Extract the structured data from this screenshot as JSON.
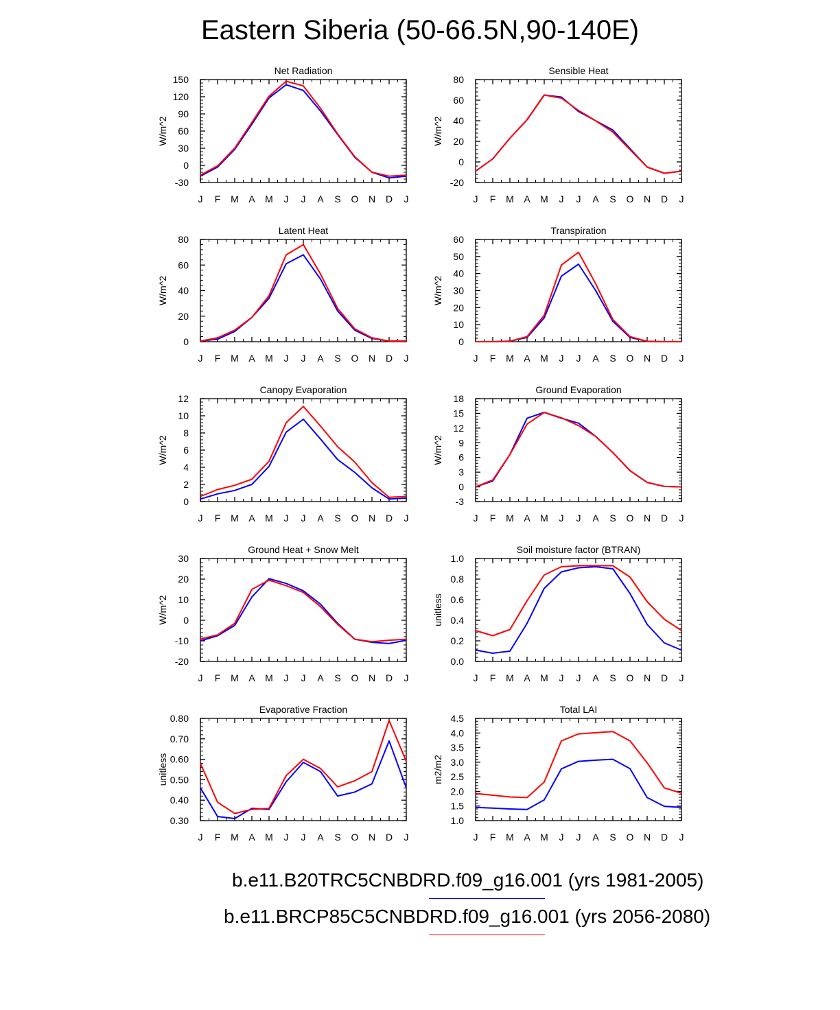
{
  "title": "Eastern Siberia (50-66.5N,90-140E)",
  "months": [
    "J",
    "F",
    "M",
    "A",
    "M",
    "J",
    "J",
    "A",
    "S",
    "O",
    "N",
    "D",
    "J"
  ],
  "colors": {
    "hist": "#0000ff",
    "future": "#ff0000"
  },
  "legend": [
    {
      "label": "b.e11.B20TRC5CNBDRD.f09_g16.001 (yrs 1981-2005)",
      "color": "#0000ff"
    },
    {
      "label": "b.e11.BRCP85C5CNBDRD.f09_g16.001 (yrs 2056-2080)",
      "color": "#ff0000"
    }
  ],
  "chart_data": [
    {
      "type": "line",
      "title": "Net Radiation",
      "ylabel": "W/m^2",
      "ylim": [
        -30,
        150
      ],
      "yticks": [
        -30,
        0,
        30,
        60,
        90,
        120,
        150
      ],
      "yticklabels": [
        "-30",
        "0",
        "30",
        "60",
        "90",
        "120",
        "150"
      ],
      "series": [
        {
          "name": "b.e11.B20TRC5CNBDRD.f09_g16.001 (yrs 1981-2005)",
          "values": [
            -19,
            -3,
            28,
            72,
            118,
            141,
            131,
            95,
            54,
            14,
            -12,
            -22,
            -19
          ]
        },
        {
          "name": "b.e11.BRCP85C5CNBDRD.f09_g16.001 (yrs 2056-2080)",
          "values": [
            -17,
            -1,
            30,
            75,
            121,
            147,
            139,
            100,
            55,
            15,
            -12,
            -19,
            -17
          ]
        }
      ]
    },
    {
      "type": "line",
      "title": "Sensible Heat",
      "ylabel": "W/m^2",
      "ylim": [
        -20,
        80
      ],
      "yticks": [
        -20,
        0,
        20,
        40,
        60,
        80
      ],
      "yticklabels": [
        "-20",
        "0",
        "20",
        "40",
        "60",
        "80"
      ],
      "series": [
        {
          "name": "b.e11.B20TRC5CNBDRD.f09_g16.001 (yrs 1981-2005)",
          "values": [
            -9,
            3,
            23,
            41,
            65,
            63,
            49,
            40,
            31,
            13,
            -5,
            -11,
            -9
          ]
        },
        {
          "name": "b.e11.BRCP85C5CNBDRD.f09_g16.001 (yrs 2056-2080)",
          "values": [
            -9,
            3,
            23,
            41,
            65,
            62,
            50,
            40,
            29,
            12,
            -5,
            -11,
            -9
          ]
        }
      ]
    },
    {
      "type": "line",
      "title": "Latent Heat",
      "ylabel": "W/m^2",
      "ylim": [
        0,
        80
      ],
      "yticks": [
        0,
        20,
        40,
        60,
        80
      ],
      "yticklabels": [
        "0",
        "20",
        "40",
        "60",
        "80"
      ],
      "series": [
        {
          "name": "b.e11.B20TRC5CNBDRD.f09_g16.001 (yrs 1981-2005)",
          "values": [
            0.5,
            2,
            8,
            19,
            34,
            61,
            68,
            49,
            24,
            9,
            2.5,
            0.5,
            0.5
          ]
        },
        {
          "name": "b.e11.BRCP85C5CNBDRD.f09_g16.001 (yrs 2056-2080)",
          "values": [
            0.5,
            3,
            9,
            19,
            36,
            68,
            76,
            53,
            26,
            10,
            3,
            0.5,
            0.5
          ]
        }
      ]
    },
    {
      "type": "line",
      "title": "Transpiration",
      "ylabel": "W/m^2",
      "ylim": [
        0,
        60
      ],
      "yticks": [
        0,
        10,
        20,
        30,
        40,
        50,
        60
      ],
      "yticklabels": [
        "0",
        "10",
        "20",
        "30",
        "40",
        "50",
        "60"
      ],
      "series": [
        {
          "name": "b.e11.B20TRC5CNBDRD.f09_g16.001 (yrs 1981-2005)",
          "values": [
            0,
            0,
            0.3,
            2.5,
            14,
            38.5,
            45.5,
            30,
            12,
            2.5,
            0.2,
            0,
            0
          ]
        },
        {
          "name": "b.e11.BRCP85C5CNBDRD.f09_g16.001 (yrs 2056-2080)",
          "values": [
            0,
            0,
            0.3,
            3,
            15.5,
            45,
            52.5,
            34,
            13,
            3,
            0.2,
            0,
            0
          ]
        }
      ]
    },
    {
      "type": "line",
      "title": "Canopy Evaporation",
      "ylabel": "W/m^2",
      "ylim": [
        0,
        12
      ],
      "yticks": [
        0,
        2,
        4,
        6,
        8,
        10,
        12
      ],
      "yticklabels": [
        "0",
        "2",
        "4",
        "6",
        "8",
        "10",
        "12"
      ],
      "series": [
        {
          "name": "b.e11.B20TRC5CNBDRD.f09_g16.001 (yrs 1981-2005)",
          "values": [
            0.3,
            0.9,
            1.3,
            2.0,
            4.1,
            8.1,
            9.6,
            7.3,
            4.9,
            3.4,
            1.6,
            0.3,
            0.4
          ]
        },
        {
          "name": "b.e11.BRCP85C5CNBDRD.f09_g16.001 (yrs 2056-2080)",
          "values": [
            0.6,
            1.4,
            1.9,
            2.6,
            4.7,
            9.2,
            11.1,
            8.8,
            6.4,
            4.6,
            2.2,
            0.5,
            0.6
          ]
        }
      ]
    },
    {
      "type": "line",
      "title": "Ground Evaporation",
      "ylabel": "W/m^2",
      "ylim": [
        -3,
        18
      ],
      "yticks": [
        -3,
        0,
        3,
        6,
        9,
        12,
        15,
        18
      ],
      "yticklabels": [
        "-3",
        "0",
        "3",
        "6",
        "9",
        "12",
        "15",
        "18"
      ],
      "series": [
        {
          "name": "b.e11.B20TRC5CNBDRD.f09_g16.001 (yrs 1981-2005)",
          "values": [
            0,
            1.2,
            6.6,
            14,
            15.2,
            14,
            13,
            10.3,
            7,
            3.3,
            0.9,
            0.1,
            0
          ]
        },
        {
          "name": "b.e11.BRCP85C5CNBDRD.f09_g16.001 (yrs 2056-2080)",
          "values": [
            0,
            1.4,
            6.6,
            12.8,
            15.2,
            14.1,
            12.5,
            10.3,
            7,
            3.3,
            0.9,
            0.1,
            0
          ]
        }
      ]
    },
    {
      "type": "line",
      "title": "Ground Heat + Snow Melt",
      "ylabel": "W/m^2",
      "ylim": [
        -20,
        30
      ],
      "yticks": [
        -20,
        -10,
        0,
        10,
        20,
        30
      ],
      "yticklabels": [
        "-20",
        "-10",
        "0",
        "10",
        "20",
        "30"
      ],
      "series": [
        {
          "name": "b.e11.B20TRC5CNBDRD.f09_g16.001 (yrs 1981-2005)",
          "values": [
            -10,
            -7.5,
            -2.5,
            11.3,
            20.2,
            17.9,
            14.3,
            7.8,
            -1.5,
            -9.2,
            -10.7,
            -11.3,
            -9.7
          ]
        },
        {
          "name": "b.e11.BRCP85C5CNBDRD.f09_g16.001 (yrs 2056-2080)",
          "values": [
            -9.1,
            -7.1,
            -1.5,
            15,
            19.5,
            16.8,
            13.5,
            6.6,
            -2,
            -9.2,
            -10.4,
            -9.7,
            -9.2
          ]
        }
      ]
    },
    {
      "type": "line",
      "title": "Soil moisture factor (BTRAN)",
      "ylabel": "unitless",
      "ylim": [
        0,
        1
      ],
      "yticks": [
        0,
        0.2,
        0.4,
        0.6,
        0.8,
        1.0
      ],
      "yticklabels": [
        "0.0",
        "0.2",
        "0.4",
        "0.6",
        "0.8",
        "1.0"
      ],
      "series": [
        {
          "name": "b.e11.B20TRC5CNBDRD.f09_g16.001 (yrs 1981-2005)",
          "values": [
            0.11,
            0.08,
            0.1,
            0.37,
            0.71,
            0.87,
            0.91,
            0.92,
            0.9,
            0.66,
            0.36,
            0.18,
            0.11
          ]
        },
        {
          "name": "b.e11.BRCP85C5CNBDRD.f09_g16.001 (yrs 2056-2080)",
          "values": [
            0.3,
            0.25,
            0.31,
            0.59,
            0.84,
            0.92,
            0.93,
            0.93,
            0.93,
            0.82,
            0.58,
            0.41,
            0.3
          ]
        }
      ]
    },
    {
      "type": "line",
      "title": "Evaporative Fraction",
      "ylabel": "unitless",
      "ylim": [
        0.3,
        0.8
      ],
      "yticks": [
        0.3,
        0.4,
        0.5,
        0.6,
        0.7,
        0.8
      ],
      "yticklabels": [
        "0.30",
        "0.40",
        "0.50",
        "0.60",
        "0.70",
        "0.80"
      ],
      "series": [
        {
          "name": "b.e11.B20TRC5CNBDRD.f09_g16.001 (yrs 1981-2005)",
          "values": [
            0.46,
            0.32,
            0.31,
            0.36,
            0.355,
            0.49,
            0.585,
            0.54,
            0.42,
            0.44,
            0.48,
            0.69,
            0.46
          ]
        },
        {
          "name": "b.e11.BRCP85C5CNBDRD.f09_g16.001 (yrs 2056-2080)",
          "values": [
            0.58,
            0.39,
            0.335,
            0.355,
            0.36,
            0.52,
            0.6,
            0.555,
            0.465,
            0.495,
            0.54,
            0.79,
            0.59
          ]
        }
      ]
    },
    {
      "type": "line",
      "title": "Total LAI",
      "ylabel": "m2/m2",
      "ylim": [
        1,
        4.5
      ],
      "yticks": [
        1,
        1.5,
        2,
        2.5,
        3,
        3.5,
        4,
        4.5
      ],
      "yticklabels": [
        "1.0",
        "1.5",
        "2.0",
        "2.5",
        "3.0",
        "3.5",
        "4.0",
        "4.5"
      ],
      "series": [
        {
          "name": "b.e11.B20TRC5CNBDRD.f09_g16.001 (yrs 1981-2005)",
          "values": [
            1.45,
            1.43,
            1.4,
            1.38,
            1.71,
            2.77,
            3.03,
            3.07,
            3.1,
            2.78,
            1.79,
            1.49,
            1.45
          ]
        },
        {
          "name": "b.e11.BRCP85C5CNBDRD.f09_g16.001 (yrs 2056-2080)",
          "values": [
            1.93,
            1.87,
            1.81,
            1.79,
            2.32,
            3.73,
            3.97,
            4.01,
            4.05,
            3.73,
            2.98,
            2.12,
            1.94
          ]
        }
      ]
    }
  ]
}
